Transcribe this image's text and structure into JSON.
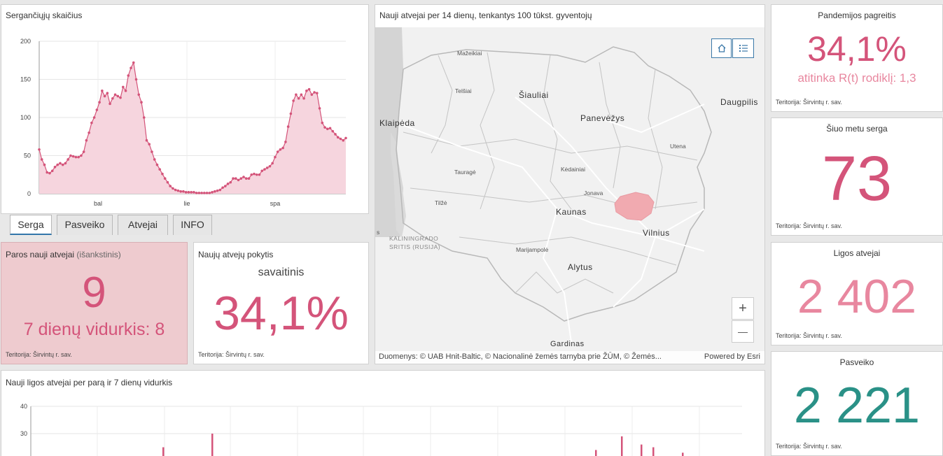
{
  "colors": {
    "accent": "#d4547a",
    "accent_light": "#e8879f",
    "teal": "#2a9187",
    "today_bg": "#eecbcf",
    "area_fill": "#f6d5de"
  },
  "active_chart": {
    "title": "Sergančiųjų skaičius",
    "chart_data": {
      "type": "area",
      "ylim": [
        0,
        200
      ],
      "y_ticks": [
        "200",
        "150",
        "100",
        "50",
        "0"
      ],
      "x_tick_labels": [
        "bal",
        "lie",
        "spa"
      ],
      "series": [
        {
          "values": [
            58,
            45,
            38,
            28,
            27,
            30,
            35,
            38,
            40,
            38,
            40,
            45,
            50,
            49,
            48,
            48,
            50,
            55,
            70,
            80,
            93,
            100,
            110,
            120,
            135,
            128,
            132,
            118,
            125,
            130,
            128,
            126,
            140,
            135,
            155,
            165,
            172,
            150,
            130,
            120,
            100,
            70,
            65,
            55,
            45,
            38,
            32,
            26,
            20,
            15,
            10,
            7,
            5,
            4,
            3,
            3,
            2,
            2,
            2,
            2,
            1,
            1,
            1,
            1,
            1,
            1,
            2,
            3,
            4,
            5,
            8,
            10,
            13,
            15,
            20,
            20,
            18,
            20,
            22,
            20,
            20,
            25,
            26,
            25,
            25,
            30,
            32,
            34,
            36,
            40,
            48,
            55,
            58,
            60,
            68,
            88,
            105,
            122,
            130,
            125,
            130,
            125,
            135,
            137,
            130,
            133,
            132,
            112,
            93,
            87,
            85,
            86,
            82,
            78,
            74,
            72,
            70,
            73
          ]
        }
      ]
    }
  },
  "tabs": [
    "Serga",
    "Pasveiko",
    "Atvejai",
    "INFO"
  ],
  "daily_new": {
    "title": "Paros nauji atvejai",
    "title_suffix": "(išankstinis)",
    "value": "9",
    "avg_text": "7 dienų vidurkis: 8",
    "territory": "Teritorija: Širvintų r. sav."
  },
  "weekly_change": {
    "title": "Naujų atvejų pokytis",
    "subtitle": "savaitinis",
    "value": "34,1%",
    "territory": "Teritorija: Širvintų r. sav."
  },
  "map": {
    "title": "Nauji atvejai per 14 dienų, tenkantys 100 tūkst. gyventojų",
    "labels_big": [
      "Šiauliai",
      "Panevėžys",
      "Klaipėda",
      "Kaunas",
      "Vilnius",
      "Alytus",
      "Gardinas",
      "Daugpilis"
    ],
    "labels_small": [
      "Mažeikiai",
      "Telšiai",
      "Utena",
      "Kėdainiai",
      "Jonava",
      "Tauragė",
      "Tilžė",
      "Marijampolė",
      "KALININGRADO",
      "SRITIS (RUSIJA)",
      "s"
    ],
    "attribution": "Duomenys: © UAB Hnit-Baltic, © Nacionalinė žemės tarnyba prie ŽŪM, © Žemės...",
    "powered": "Powered by Esri",
    "zoom_in": "+",
    "zoom_out": "—"
  },
  "kpis": [
    {
      "title": "Pandemijos pagreitis",
      "value": "34,1%",
      "sub": "atitinka R(t) rodiklį: 1,3",
      "territory": "Teritorija: Širvintų r. sav."
    },
    {
      "title": "Šiuo metu serga",
      "value": "73",
      "territory": "Teritorija: Širvintų r. sav."
    },
    {
      "title": "Ligos atvejai",
      "value": "2 402",
      "territory": "Teritorija: Širvintų r. sav."
    },
    {
      "title": "Pasveiko",
      "value": "2 221",
      "territory": "Teritorija: Širvintų r. sav."
    }
  ],
  "bottom_chart": {
    "title": "Nauji ligos atvejai per parą ir 7 dienų vidurkis",
    "chart_data": {
      "type": "bar",
      "y_ticks": [
        "40",
        "30"
      ],
      "ylim_visible": [
        20,
        40
      ],
      "visible_bars": [
        {
          "index": 230,
          "value": 25
        },
        {
          "index": 300,
          "value": 30
        },
        {
          "index": 848,
          "value": 24
        },
        {
          "index": 885,
          "value": 29
        },
        {
          "index": 913,
          "value": 26
        },
        {
          "index": 930,
          "value": 25
        },
        {
          "index": 972,
          "value": 23
        }
      ]
    }
  }
}
